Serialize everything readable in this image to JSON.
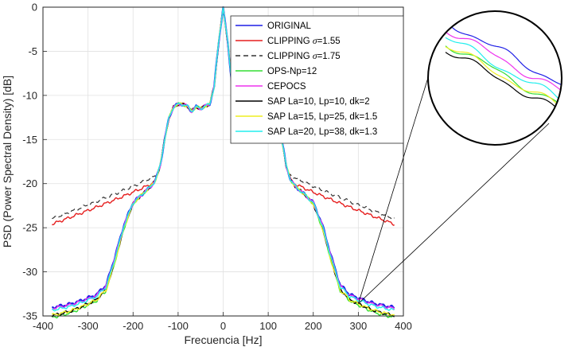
{
  "chart_data": {
    "type": "line",
    "title": "",
    "xlabel": "Frecuencia [Hz]",
    "ylabel": "PSD (Power Spectral Density) [dB]",
    "xlim": [
      -400,
      400
    ],
    "ylim": [
      -35,
      0
    ],
    "xticks": [
      -400,
      -300,
      -200,
      -100,
      0,
      100,
      200,
      300,
      400
    ],
    "yticks": [
      0,
      -5,
      -10,
      -15,
      -20,
      -25,
      -30,
      -35
    ],
    "xtick_labels": [
      "-400",
      "-300",
      "-200",
      "-100",
      "0",
      "100",
      "200",
      "300",
      "400"
    ],
    "ytick_labels": [
      "0",
      "-5",
      "-10",
      "-15",
      "-20",
      "-25",
      "-30",
      "-35"
    ],
    "grid": true,
    "legend_position": "top-right",
    "shape": {
      "f": [
        0,
        10,
        20,
        30,
        40,
        50,
        60,
        70,
        80,
        90,
        100,
        110,
        120,
        130,
        140,
        150,
        160,
        180,
        200,
        220,
        240,
        260,
        270,
        280,
        300,
        320,
        340,
        360,
        380
      ],
      "db": [
        0,
        -4,
        -9,
        -11,
        -11.2,
        -11.5,
        -11.3,
        -11.8,
        -11.2,
        -11.0,
        -11.0,
        -11.3,
        -12.5,
        -15,
        -18,
        -19.6,
        -20.3,
        -21.2,
        -22.2,
        -24.8,
        -28.5,
        -31.8,
        -32.2,
        -32.8,
        -33.2,
        -33.6,
        -33.9,
        -34.1,
        -34.3
      ]
    },
    "series": [
      {
        "name": "ORIGINAL",
        "color": "#1f1fe6",
        "dash": false,
        "offset": 0.25,
        "floor": -34.3,
        "width": 2.2
      },
      {
        "name": "CLIPPING σ=1.55",
        "label_main": "CLIPPING ",
        "label_sigma": "σ",
        "label_value": "=1.55",
        "color": "#e61e1e",
        "dash": false,
        "kind": "clip",
        "floor": -24.6,
        "width": 1.4
      },
      {
        "name": "CLIPPING σ=1.75",
        "label_main": "CLIPPING ",
        "label_sigma": "σ",
        "label_value": "=1.75",
        "color": "#333333",
        "dash": true,
        "kind": "clip",
        "floor": -24.0,
        "width": 1.2
      },
      {
        "name": "OPS-Np=12",
        "color": "#33dd33",
        "dash": false,
        "offset": -0.35,
        "floor": -34.8,
        "width": 1.4
      },
      {
        "name": "CEPOCS",
        "color": "#ee33ee",
        "dash": false,
        "offset": 0.15,
        "floor": -34.3,
        "width": 1.4
      },
      {
        "name": "SAP La=10, Lp=10, dk=2",
        "color": "#000000",
        "dash": false,
        "offset": -0.25,
        "floor": -34.7,
        "width": 1.4
      },
      {
        "name": "SAP La=15, Lp=25, dk=1.5",
        "color": "#eeee22",
        "dash": false,
        "offset": -0.3,
        "floor": -34.6,
        "width": 1.4
      },
      {
        "name": "SAP La=20, Lp=38, dk=1.3",
        "color": "#22eeee",
        "dash": false,
        "offset": 0.05,
        "floor": -34.4,
        "width": 1.4
      }
    ],
    "inset": {
      "type": "zoom",
      "region_x": [
        295,
        305
      ],
      "region_y": [
        -34,
        -33
      ]
    }
  }
}
